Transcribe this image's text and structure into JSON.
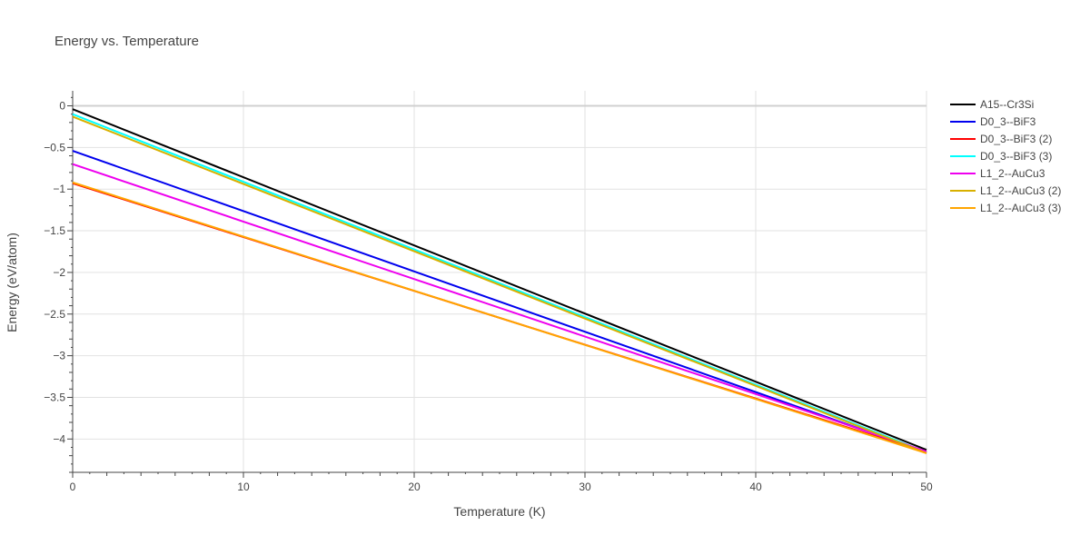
{
  "chart_data": {
    "type": "line",
    "title": "Energy vs. Temperature",
    "xlabel": "Temperature (K)",
    "ylabel": "Energy (eV/atom)",
    "xlim": [
      0,
      50
    ],
    "ylim": [
      -4.4,
      0.18
    ],
    "x_ticks": [
      0,
      10,
      20,
      30,
      40,
      50
    ],
    "x_tick_labels": [
      "0",
      "10",
      "20",
      "30",
      "40",
      "50"
    ],
    "y_ticks": [
      0,
      -0.5,
      -1,
      -1.5,
      -2,
      -2.5,
      -3,
      -3.5,
      -4
    ],
    "y_tick_labels": [
      "0",
      "−0.5",
      "−1",
      "−1.5",
      "−2",
      "−2.5",
      "−3",
      "−3.5",
      "−4"
    ],
    "grid": true,
    "legend_position": "top-right",
    "x": [
      0,
      50
    ],
    "series": [
      {
        "name": "A15--Cr3Si",
        "color": "#000000",
        "values": [
          -0.04,
          -4.13
        ]
      },
      {
        "name": "D0_3--BiF3",
        "color": "#0000ee",
        "values": [
          -0.54,
          -4.16
        ]
      },
      {
        "name": "D0_3--BiF3 (2)",
        "color": "#ff0000",
        "values": [
          -0.93,
          -4.16
        ]
      },
      {
        "name": "D0_3--BiF3 (3)",
        "color": "#00ffff",
        "values": [
          -0.1,
          -4.16
        ]
      },
      {
        "name": "L1_2--AuCu3",
        "color": "#ee00ee",
        "values": [
          -0.7,
          -4.15
        ]
      },
      {
        "name": "L1_2--AuCu3 (2)",
        "color": "#d8b000",
        "values": [
          -0.13,
          -4.17
        ]
      },
      {
        "name": "L1_2--AuCu3 (3)",
        "color": "#ffa500",
        "values": [
          -0.92,
          -4.17
        ]
      }
    ]
  }
}
